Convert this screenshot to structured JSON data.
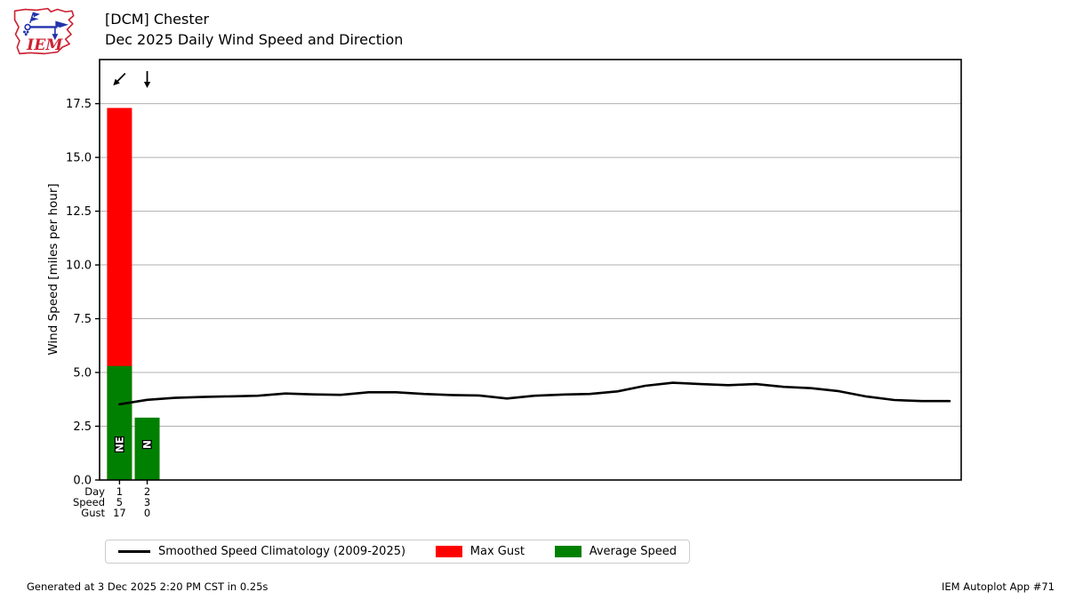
{
  "header": {
    "logo_text": "IEM",
    "title_line1": "[DCM] Chester",
    "title_line2": "Dec 2025 Daily Wind Speed and Direction"
  },
  "chart_data": {
    "type": "bar",
    "title": "[DCM] Chester — Dec 2025 Daily Wind Speed and Direction",
    "ylabel": "Wind Speed [miles per hour]",
    "ylim": [
      0,
      19.55
    ],
    "yticks": [
      0.0,
      2.5,
      5.0,
      7.5,
      10.0,
      12.5,
      15.0,
      17.5
    ],
    "xlim": [
      0.28,
      31.42
    ],
    "grid": true,
    "days": [
      1,
      2
    ],
    "directions": [
      "NE",
      "N"
    ],
    "wind_arrows": [
      {
        "day": 1,
        "dx": -0.707,
        "dy": 0.707
      },
      {
        "day": 2,
        "dx": 0,
        "dy": 1
      }
    ],
    "series": [
      {
        "name": "Max Gust",
        "type": "bar",
        "color": "#ff0000",
        "values": [
          17.3,
          0
        ],
        "labels": [
          "17",
          "0"
        ]
      },
      {
        "name": "Average Speed",
        "type": "bar",
        "color": "#008000",
        "values": [
          5.3,
          2.9
        ],
        "labels": [
          "5",
          "3"
        ]
      },
      {
        "name": "Smoothed Speed Climatology (2009-2025)",
        "type": "line",
        "color": "#000000",
        "x": [
          1,
          2,
          3,
          4,
          5,
          6,
          7,
          8,
          9,
          10,
          11,
          12,
          13,
          14,
          15,
          16,
          17,
          18,
          19,
          20,
          21,
          22,
          23,
          24,
          25,
          26,
          27,
          28,
          29,
          30,
          31
        ],
        "values": [
          3.52,
          3.73,
          3.82,
          3.86,
          3.89,
          3.92,
          4.02,
          3.98,
          3.96,
          4.08,
          4.08,
          4.0,
          3.95,
          3.93,
          3.79,
          3.92,
          3.97,
          4.0,
          4.12,
          4.38,
          4.52,
          4.46,
          4.41,
          4.46,
          4.33,
          4.27,
          4.13,
          3.88,
          3.72,
          3.67,
          3.67
        ]
      }
    ],
    "xaxis_rows": [
      {
        "label": "Day",
        "values": [
          "1",
          "2"
        ]
      },
      {
        "label": "Speed",
        "values": [
          "5",
          "3"
        ]
      },
      {
        "label": "Gust",
        "values": [
          "17",
          "0"
        ]
      }
    ],
    "legend": [
      {
        "swatch": "line",
        "color": "#000000",
        "label": "Smoothed Speed Climatology (2009-2025)"
      },
      {
        "swatch": "rect",
        "color": "#ff0000",
        "label": "Max Gust"
      },
      {
        "swatch": "rect",
        "color": "#008000",
        "label": "Average Speed"
      }
    ],
    "colors": {
      "max_gust": "#ff0000",
      "avg_speed": "#008000",
      "climatology": "#000000",
      "grid": "#b0b0b0",
      "logo_red": "#cc2233",
      "logo_blue": "#2233aa"
    }
  },
  "footer": {
    "left": "Generated at 3 Dec 2025 2:20 PM CST in 0.25s",
    "right": "IEM Autoplot App #71"
  }
}
